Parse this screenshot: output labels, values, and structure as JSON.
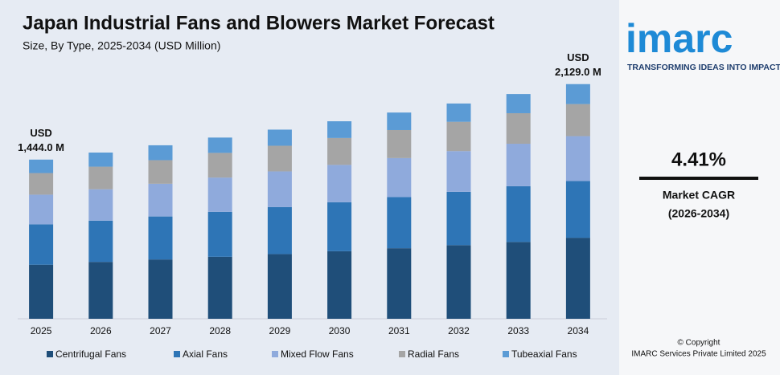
{
  "chart_data": {
    "type": "stacked-bar",
    "title": "Japan Industrial Fans and Blowers Market Forecast",
    "subtitle": "Size, By Type, 2025-2034 (USD Million)",
    "categories": [
      "2025",
      "2026",
      "2027",
      "2028",
      "2029",
      "2030",
      "2031",
      "2032",
      "2033",
      "2034"
    ],
    "series": [
      {
        "name": "Centrifugal Fans",
        "color": "#1f4e79",
        "values": [
          490,
          516,
          538,
          562,
          587,
          613,
          640,
          668,
          697,
          735
        ]
      },
      {
        "name": "Axial Fans",
        "color": "#2e75b6",
        "values": [
          367,
          374,
          390,
          408,
          426,
          444,
          464,
          484,
          506,
          515
        ]
      },
      {
        "name": "Mixed Flow Fans",
        "color": "#8faadc",
        "values": [
          269,
          285,
          297,
          311,
          324,
          339,
          354,
          369,
          385,
          407
        ]
      },
      {
        "name": "Radial Fans",
        "color": "#a5a5a5",
        "values": [
          196,
          205,
          214,
          224,
          233,
          244,
          254,
          266,
          277,
          291
        ]
      },
      {
        "name": "Tubeaxial Fans",
        "color": "#5b9bd5",
        "values": [
          122,
          128,
          135,
          139,
          146,
          152,
          159,
          166,
          174,
          181
        ]
      }
    ],
    "totals": [
      1444.0,
      null,
      null,
      null,
      null,
      null,
      null,
      null,
      null,
      2129.0
    ],
    "total_labels": {
      "unit": "USD",
      "labels": [
        "1,444.0 M",
        null,
        null,
        null,
        null,
        null,
        null,
        null,
        null,
        "2,129.0 M"
      ]
    },
    "ylim": [
      0,
      2200
    ],
    "legend": "bottom"
  },
  "sidebar": {
    "logo": "imarc",
    "tagline": "TRANSFORMING IDEAS INTO IMPACT",
    "cagr": "4.41%",
    "cagr_label": "Market CAGR",
    "cagr_period": "(2026-2034)",
    "copyright": "© Copyright",
    "company": "IMARC Services Private Limited 2025"
  }
}
